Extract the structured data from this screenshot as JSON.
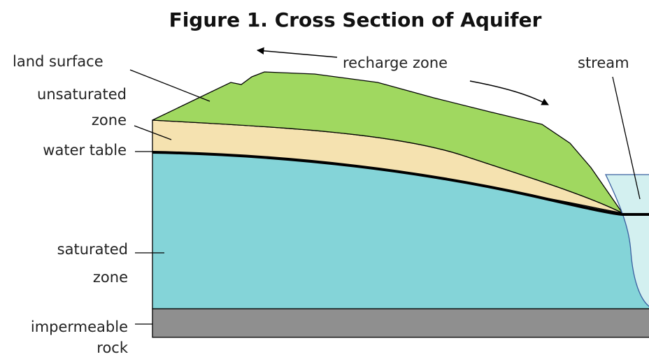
{
  "title": "Figure 1. Cross Section of Aquifer",
  "labels": {
    "land_surface": [
      "land surface"
    ],
    "recharge_zone": [
      "recharge zone"
    ],
    "stream": [
      "stream"
    ],
    "unsaturated_zone": [
      "unsaturated",
      "zone"
    ],
    "water_table": [
      "water table"
    ],
    "saturated_zone": [
      "saturated",
      "zone"
    ],
    "impermeable_rock": [
      "impermeable",
      "rock"
    ]
  }
}
